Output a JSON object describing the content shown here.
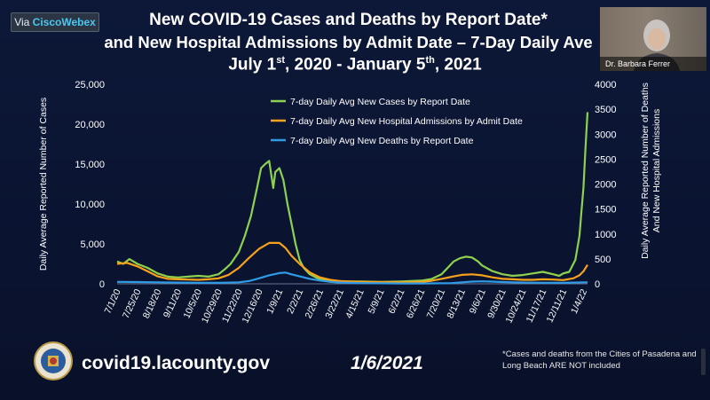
{
  "meeting": {
    "badge_prefix": "Via ",
    "badge_brand": "CiscoWebex",
    "participant_name": "Dr. Barbara Ferrer"
  },
  "slide": {
    "title_line1": "New COVID-19 Cases and Deaths by Report Date*",
    "title_line2": "and New Hospital Admissions by Admit Date – 7-Day Daily Ave",
    "title_line3_a": "July 1",
    "title_line3_sup1": "st",
    "title_line3_b": ", 2020 - January 5",
    "title_line3_sup2": "th",
    "title_line3_c": ", 2021",
    "url": "covid19.lacounty.gov",
    "date": "1/6/2021",
    "footnote": "*Cases and deaths from the Cities of Pasadena and Long Beach ARE NOT included"
  },
  "colors": {
    "cases": "#8ed14f",
    "admissions": "#f7a21a",
    "deaths": "#2f9be6",
    "background": "#0b1230"
  },
  "chart_data": {
    "type": "line",
    "title": "",
    "xlabel": "",
    "ylabel": "Daily Average Reported Number of Cases",
    "y2label_line1": "Daily Average Reported Number of Deaths",
    "y2label_line2": "And New Hospital Admissions",
    "ylim": [
      0,
      25000
    ],
    "y2lim": [
      0,
      4000
    ],
    "yticks": [
      "0",
      "5,000",
      "10,000",
      "15,000",
      "20,000",
      "25,000"
    ],
    "y2ticks": [
      "0",
      "500",
      "1000",
      "1500",
      "2000",
      "2500",
      "3000",
      "3500",
      "4000"
    ],
    "x_ticks": [
      "7/1/20",
      "7/25/20",
      "8/18/20",
      "9/11/20",
      "10/5/20",
      "10/29/20",
      "11/22/20",
      "12/16/20",
      "1/9/21",
      "2/2/21",
      "2/26/21",
      "3/22/21",
      "4/15/21",
      "5/9/21",
      "6/2/21",
      "6/26/21",
      "7/20/21",
      "8/13/21",
      "9/6/21",
      "9/30/21",
      "10/24/21",
      "11/17/21",
      "12/11/21",
      "1/4/22"
    ],
    "legend_position": "top-center",
    "series": [
      {
        "name": "7-day Daily Avg New Cases by Report Date",
        "axis": "left",
        "x": [
          0,
          0.3,
          0.6,
          1,
          1.5,
          2,
          2.5,
          3,
          3.5,
          4,
          4.5,
          5,
          5.3,
          5.6,
          6,
          6.3,
          6.6,
          6.9,
          7.1,
          7.3,
          7.5,
          7.7,
          7.8,
          8,
          8.2,
          8.4,
          8.6,
          8.8,
          9,
          9.2,
          9.5,
          9.8,
          10,
          10.5,
          11,
          12,
          13,
          14,
          15,
          15.5,
          16,
          16.3,
          16.6,
          16.9,
          17.2,
          17.5,
          17.8,
          18,
          18.5,
          19,
          19.5,
          20,
          20.5,
          21,
          21.5,
          21.8,
          22,
          22.3,
          22.6,
          22.8,
          22.9,
          23,
          23.1,
          23.2
        ],
        "values": [
          2800,
          2500,
          3100,
          2500,
          2000,
          1300,
          900,
          800,
          900,
          1000,
          900,
          1200,
          1800,
          2500,
          4000,
          6000,
          8500,
          12000,
          14500,
          15000,
          15400,
          12000,
          14000,
          14500,
          13000,
          10000,
          7500,
          5000,
          3000,
          2000,
          1200,
          800,
          600,
          400,
          300,
          300,
          250,
          300,
          400,
          600,
          1200,
          2000,
          2800,
          3200,
          3400,
          3300,
          2800,
          2300,
          1600,
          1200,
          1000,
          1100,
          1300,
          1500,
          1200,
          1000,
          1300,
          1500,
          3000,
          6000,
          9000,
          12000,
          17000,
          21500
        ]
      },
      {
        "name": "7-day Daily Avg New Hospital Admissions by Admit Date",
        "axis": "right",
        "x": [
          0,
          0.5,
          1,
          1.5,
          2,
          2.5,
          3,
          3.5,
          4,
          4.5,
          5,
          5.5,
          6,
          6.5,
          7,
          7.5,
          8,
          8.3,
          8.6,
          9,
          9.5,
          10,
          10.5,
          11,
          12,
          13,
          14,
          15,
          15.5,
          16,
          16.5,
          17,
          17.5,
          18,
          18.5,
          19,
          19.5,
          20,
          20.5,
          21,
          21.5,
          22,
          22.5,
          22.8,
          23,
          23.2
        ],
        "values": [
          400,
          420,
          350,
          250,
          150,
          100,
          90,
          85,
          80,
          90,
          110,
          180,
          320,
          520,
          700,
          820,
          820,
          720,
          560,
          400,
          230,
          130,
          80,
          55,
          40,
          35,
          30,
          40,
          60,
          100,
          140,
          180,
          190,
          170,
          130,
          100,
          90,
          80,
          80,
          90,
          85,
          75,
          110,
          170,
          250,
          380
        ]
      },
      {
        "name": "7-day Daily Avg New Deaths by Report Date",
        "axis": "right",
        "x": [
          0,
          1,
          2,
          3,
          4,
          5,
          6,
          6.5,
          7,
          7.5,
          8,
          8.3,
          8.6,
          9,
          9.5,
          10,
          10.5,
          11,
          12,
          13,
          14,
          15,
          16,
          16.5,
          17,
          17.5,
          18,
          18.5,
          19,
          20,
          21,
          22,
          23,
          23.2
        ],
        "values": [
          40,
          35,
          30,
          25,
          20,
          20,
          30,
          55,
          110,
          170,
          215,
          225,
          190,
          150,
          100,
          65,
          40,
          25,
          15,
          10,
          8,
          8,
          10,
          15,
          30,
          45,
          50,
          45,
          35,
          25,
          22,
          20,
          30,
          30
        ]
      }
    ]
  }
}
